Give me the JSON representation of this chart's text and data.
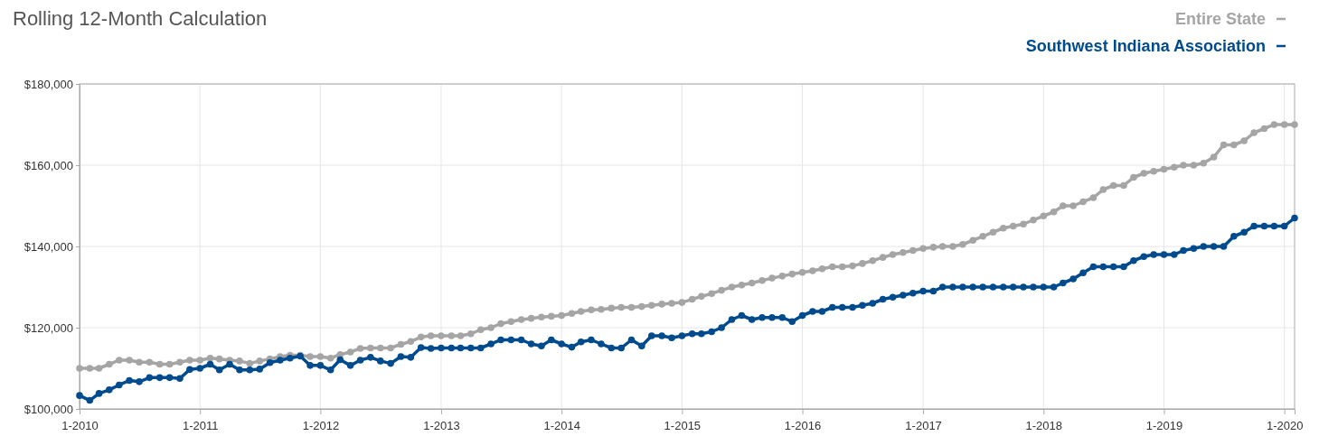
{
  "chart_data": {
    "type": "line",
    "title": "Rolling 12-Month Calculation",
    "x": [
      "2010-01",
      "2010-02",
      "2010-03",
      "2010-04",
      "2010-05",
      "2010-06",
      "2010-07",
      "2010-08",
      "2010-09",
      "2010-10",
      "2010-11",
      "2010-12",
      "2011-01",
      "2011-02",
      "2011-03",
      "2011-04",
      "2011-05",
      "2011-06",
      "2011-07",
      "2011-08",
      "2011-09",
      "2011-10",
      "2011-11",
      "2011-12",
      "2012-01",
      "2012-02",
      "2012-03",
      "2012-04",
      "2012-05",
      "2012-06",
      "2012-07",
      "2012-08",
      "2012-09",
      "2012-10",
      "2012-11",
      "2012-12",
      "2013-01",
      "2013-02",
      "2013-03",
      "2013-04",
      "2013-05",
      "2013-06",
      "2013-07",
      "2013-08",
      "2013-09",
      "2013-10",
      "2013-11",
      "2013-12",
      "2014-01",
      "2014-02",
      "2014-03",
      "2014-04",
      "2014-05",
      "2014-06",
      "2014-07",
      "2014-08",
      "2014-09",
      "2014-10",
      "2014-11",
      "2014-12",
      "2015-01",
      "2015-02",
      "2015-03",
      "2015-04",
      "2015-05",
      "2015-06",
      "2015-07",
      "2015-08",
      "2015-09",
      "2015-10",
      "2015-11",
      "2015-12",
      "2016-01",
      "2016-02",
      "2016-03",
      "2016-04",
      "2016-05",
      "2016-06",
      "2016-07",
      "2016-08",
      "2016-09",
      "2016-10",
      "2016-11",
      "2016-12",
      "2017-01",
      "2017-02",
      "2017-03",
      "2017-04",
      "2017-05",
      "2017-06",
      "2017-07",
      "2017-08",
      "2017-09",
      "2017-10",
      "2017-11",
      "2017-12",
      "2018-01",
      "2018-02",
      "2018-03",
      "2018-04",
      "2018-05",
      "2018-06",
      "2018-07",
      "2018-08",
      "2018-09",
      "2018-10",
      "2018-11",
      "2018-12",
      "2019-01",
      "2019-02",
      "2019-03",
      "2019-04",
      "2019-05",
      "2019-06",
      "2019-07",
      "2019-08",
      "2019-09",
      "2019-10",
      "2019-11",
      "2019-12",
      "2020-01",
      "2020-02"
    ],
    "series": [
      {
        "name": "Entire State",
        "color": "#a5a5a5",
        "values": [
          110000,
          110000,
          110000,
          111000,
          112000,
          112000,
          111500,
          111500,
          111000,
          111000,
          111500,
          112000,
          112000,
          112500,
          112300,
          112000,
          111800,
          111200,
          111800,
          112300,
          112900,
          113200,
          113200,
          112900,
          112900,
          112500,
          113400,
          114000,
          114900,
          115000,
          115000,
          115000,
          115900,
          116600,
          117700,
          118000,
          118000,
          118000,
          118000,
          118500,
          119500,
          120000,
          121000,
          121500,
          122000,
          122300,
          122600,
          122800,
          123000,
          123500,
          124000,
          124400,
          124500,
          124800,
          125000,
          125000,
          125200,
          125500,
          125800,
          126000,
          126200,
          127000,
          127700,
          128400,
          129200,
          130000,
          130500,
          131000,
          131600,
          132200,
          132700,
          133200,
          133600,
          134000,
          134500,
          135000,
          135000,
          135200,
          135800,
          136500,
          137300,
          138000,
          138500,
          139000,
          139500,
          139800,
          140000,
          140000,
          140500,
          141500,
          142500,
          143500,
          144500,
          145000,
          145500,
          146500,
          147500,
          148500,
          150000,
          150000,
          151000,
          152000,
          154000,
          155000,
          155000,
          157000,
          158000,
          158500,
          159000,
          159500,
          160000,
          160000,
          160500,
          162000,
          165000,
          165000,
          166000,
          168000,
          169000,
          170000,
          170000,
          170000
        ]
      },
      {
        "name": "Southwest Indiana Association",
        "color": "#004b8d",
        "values": [
          103300,
          102100,
          103800,
          104700,
          105900,
          107000,
          106700,
          107700,
          107700,
          107700,
          107500,
          109700,
          110000,
          111000,
          109600,
          111000,
          109600,
          109600,
          109800,
          111400,
          112000,
          112500,
          113000,
          110700,
          110700,
          109600,
          112100,
          110700,
          112000,
          112700,
          111800,
          111200,
          112900,
          112700,
          115100,
          114900,
          115000,
          115000,
          115000,
          115000,
          115000,
          116000,
          117000,
          117000,
          117000,
          116000,
          115500,
          117000,
          116000,
          115200,
          116500,
          117000,
          116000,
          115000,
          115000,
          117000,
          115500,
          118000,
          118000,
          117500,
          118000,
          118500,
          118500,
          119000,
          120000,
          122000,
          123000,
          122000,
          122500,
          122500,
          122500,
          121500,
          123000,
          124000,
          124000,
          125000,
          125000,
          125000,
          125500,
          126000,
          127000,
          127500,
          128000,
          128500,
          129000,
          129000,
          130000,
          130000,
          130000,
          130000,
          130000,
          130000,
          130000,
          130000,
          130000,
          130000,
          130000,
          130000,
          131000,
          132000,
          133500,
          135000,
          135000,
          135000,
          135000,
          136500,
          137500,
          138000,
          138000,
          138000,
          139000,
          139500,
          140000,
          140000,
          140000,
          142500,
          143500,
          145000,
          145000,
          145000,
          145000,
          147000
        ]
      }
    ],
    "xlim": [
      "2010-01",
      "2020-02"
    ],
    "xticks": [
      {
        "value": "2010-01",
        "label": "1-2010"
      },
      {
        "value": "2011-01",
        "label": "1-2011"
      },
      {
        "value": "2012-01",
        "label": "1-2012"
      },
      {
        "value": "2013-01",
        "label": "1-2013"
      },
      {
        "value": "2014-01",
        "label": "1-2014"
      },
      {
        "value": "2015-01",
        "label": "1-2015"
      },
      {
        "value": "2016-01",
        "label": "1-2016"
      },
      {
        "value": "2017-01",
        "label": "1-2017"
      },
      {
        "value": "2018-01",
        "label": "1-2018"
      },
      {
        "value": "2019-01",
        "label": "1-2019"
      },
      {
        "value": "2020-01",
        "label": "1-2020"
      }
    ],
    "ylim": [
      100000,
      180000
    ],
    "yticks": [
      {
        "value": 100000,
        "label": "$100,000"
      },
      {
        "value": 120000,
        "label": "$120,000"
      },
      {
        "value": 140000,
        "label": "$140,000"
      },
      {
        "value": 160000,
        "label": "$160,000"
      },
      {
        "value": 180000,
        "label": "$180,000"
      }
    ],
    "grid": true,
    "legend": "top right",
    "marker": "circle",
    "line_style": "solid"
  }
}
